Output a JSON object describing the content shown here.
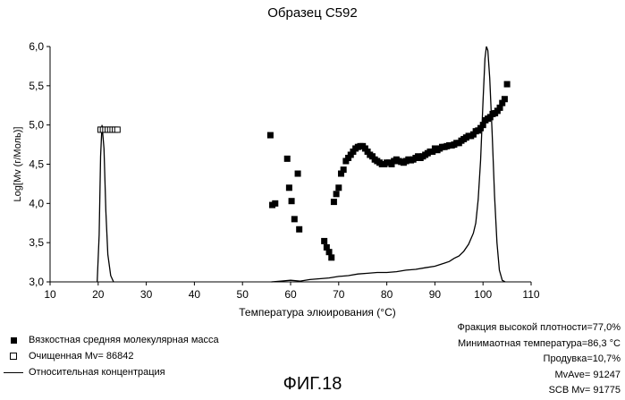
{
  "chart_data": {
    "type": "scatter",
    "title": "Образец С592",
    "xlabel": "Температура элюирования (°С)",
    "ylabel": "Log[Mv (г/Моль)]",
    "xlim": [
      10,
      110
    ],
    "ylim": [
      3.0,
      6.0
    ],
    "xticks": [
      "10",
      "20",
      "30",
      "40",
      "50",
      "60",
      "70",
      "80",
      "90",
      "100",
      "110"
    ],
    "yticks": [
      "3,0",
      "3,5",
      "4,0",
      "4,5",
      "5,0",
      "5,5",
      "6,0"
    ],
    "grid": false,
    "series": [
      {
        "name": "Вязкостная средняя молекулярная масса",
        "marker": "filled-square",
        "points": [
          [
            55.8,
            4.87
          ],
          [
            56.2,
            3.98
          ],
          [
            56.8,
            4.0
          ],
          [
            59.3,
            4.57
          ],
          [
            59.7,
            4.2
          ],
          [
            60.2,
            4.03
          ],
          [
            60.8,
            3.8
          ],
          [
            61.5,
            4.38
          ],
          [
            61.8,
            3.67
          ],
          [
            67.0,
            3.52
          ],
          [
            67.5,
            3.44
          ],
          [
            68.0,
            3.38
          ],
          [
            68.5,
            3.31
          ],
          [
            69.0,
            4.02
          ],
          [
            69.5,
            4.12
          ],
          [
            70.0,
            4.2
          ],
          [
            70.5,
            4.38
          ],
          [
            71.0,
            4.43
          ],
          [
            71.5,
            4.54
          ],
          [
            72.0,
            4.58
          ],
          [
            72.5,
            4.62
          ],
          [
            73.0,
            4.66
          ],
          [
            73.5,
            4.7
          ],
          [
            74.0,
            4.72
          ],
          [
            74.5,
            4.73
          ],
          [
            75.0,
            4.73
          ],
          [
            75.5,
            4.7
          ],
          [
            76.0,
            4.66
          ],
          [
            76.5,
            4.62
          ],
          [
            77.0,
            4.6
          ],
          [
            77.5,
            4.56
          ],
          [
            78.0,
            4.54
          ],
          [
            78.5,
            4.52
          ],
          [
            79.0,
            4.5
          ],
          [
            79.5,
            4.5
          ],
          [
            80.0,
            4.52
          ],
          [
            80.5,
            4.52
          ],
          [
            81.0,
            4.5
          ],
          [
            81.5,
            4.54
          ],
          [
            82.0,
            4.56
          ],
          [
            82.5,
            4.54
          ],
          [
            83.0,
            4.53
          ],
          [
            83.5,
            4.52
          ],
          [
            84.0,
            4.54
          ],
          [
            84.5,
            4.56
          ],
          [
            85.0,
            4.55
          ],
          [
            85.5,
            4.56
          ],
          [
            86.0,
            4.58
          ],
          [
            86.5,
            4.6
          ],
          [
            87.0,
            4.58
          ],
          [
            87.5,
            4.6
          ],
          [
            88.0,
            4.62
          ],
          [
            88.5,
            4.64
          ],
          [
            89.0,
            4.66
          ],
          [
            89.5,
            4.66
          ],
          [
            90.0,
            4.7
          ],
          [
            90.5,
            4.68
          ],
          [
            91.0,
            4.7
          ],
          [
            91.5,
            4.72
          ],
          [
            92.0,
            4.72
          ],
          [
            92.5,
            4.73
          ],
          [
            93.0,
            4.74
          ],
          [
            93.5,
            4.74
          ],
          [
            94.0,
            4.75
          ],
          [
            94.5,
            4.77
          ],
          [
            95.0,
            4.77
          ],
          [
            95.5,
            4.8
          ],
          [
            96.0,
            4.82
          ],
          [
            96.5,
            4.84
          ],
          [
            97.0,
            4.86
          ],
          [
            97.5,
            4.86
          ],
          [
            98.0,
            4.88
          ],
          [
            98.5,
            4.92
          ],
          [
            99.0,
            4.93
          ],
          [
            99.5,
            4.96
          ],
          [
            100.0,
            5.0
          ],
          [
            100.5,
            5.06
          ],
          [
            101.0,
            5.08
          ],
          [
            101.5,
            5.1
          ],
          [
            102.0,
            5.14
          ],
          [
            102.5,
            5.15
          ],
          [
            103.0,
            5.18
          ],
          [
            103.5,
            5.22
          ],
          [
            104.0,
            5.28
          ],
          [
            104.5,
            5.33
          ],
          [
            105.0,
            5.52
          ]
        ]
      },
      {
        "name": "Очищенная Mv= 86842",
        "marker": "hollow-square",
        "points": [
          [
            20.5,
            4.94
          ],
          [
            21.0,
            4.94
          ],
          [
            21.5,
            4.94
          ],
          [
            22.0,
            4.94
          ],
          [
            22.5,
            4.94
          ],
          [
            23.0,
            4.94
          ],
          [
            23.5,
            4.94
          ],
          [
            24.0,
            4.94
          ]
        ]
      },
      {
        "name": "Относительная концентрация",
        "marker": "line",
        "points": [
          [
            19.8,
            3.0
          ],
          [
            20.2,
            3.6
          ],
          [
            20.5,
            4.6
          ],
          [
            20.8,
            5.0
          ],
          [
            21.2,
            4.7
          ],
          [
            21.6,
            3.9
          ],
          [
            22.0,
            3.35
          ],
          [
            22.6,
            3.08
          ],
          [
            23.2,
            3.0
          ],
          [
            56,
            3.0
          ],
          [
            58,
            3.01
          ],
          [
            60,
            3.02
          ],
          [
            62,
            3.01
          ],
          [
            64,
            3.03
          ],
          [
            66,
            3.04
          ],
          [
            68,
            3.05
          ],
          [
            70,
            3.07
          ],
          [
            72,
            3.08
          ],
          [
            74,
            3.1
          ],
          [
            76,
            3.11
          ],
          [
            78,
            3.12
          ],
          [
            80,
            3.12
          ],
          [
            82,
            3.13
          ],
          [
            84,
            3.15
          ],
          [
            86,
            3.16
          ],
          [
            88,
            3.18
          ],
          [
            90,
            3.2
          ],
          [
            91,
            3.22
          ],
          [
            92,
            3.24
          ],
          [
            93,
            3.26
          ],
          [
            94,
            3.3
          ],
          [
            95,
            3.33
          ],
          [
            96,
            3.39
          ],
          [
            97,
            3.48
          ],
          [
            98,
            3.62
          ],
          [
            98.5,
            3.75
          ],
          [
            99,
            4.05
          ],
          [
            99.5,
            4.55
          ],
          [
            100,
            5.3
          ],
          [
            100.4,
            5.85
          ],
          [
            100.7,
            6.0
          ],
          [
            101.0,
            5.95
          ],
          [
            101.4,
            5.6
          ],
          [
            101.9,
            4.9
          ],
          [
            102.4,
            4.1
          ],
          [
            102.9,
            3.5
          ],
          [
            103.4,
            3.15
          ],
          [
            104.0,
            3.02
          ],
          [
            104.6,
            3.0
          ]
        ]
      }
    ]
  },
  "stats": [
    "Фракция высокой плотности=77,0%",
    "Минимаотная температура=86,3 °С",
    "Продувка=10,7%",
    "MvAve= 91247",
    "SCB Mv= 91775"
  ],
  "figure_caption": "ФИГ.18"
}
